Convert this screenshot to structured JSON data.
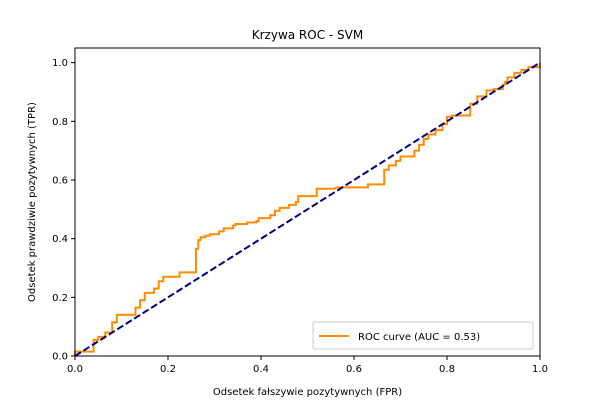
{
  "chart_data": {
    "type": "line",
    "title": "Krzywa ROC - SVM",
    "xlabel": "Odsetek fałszywie pozytywnych (FPR)",
    "ylabel": "Odsetek prawdziwie pozytywnych (TPR)",
    "xlim": [
      0.0,
      1.0
    ],
    "ylim": [
      0.0,
      1.05
    ],
    "xticks": [
      "0.0",
      "0.2",
      "0.4",
      "0.6",
      "0.8",
      "1.0"
    ],
    "yticks": [
      "0.0",
      "0.2",
      "0.4",
      "0.6",
      "0.8",
      "1.0"
    ],
    "grid": false,
    "legend_position": "lower right",
    "series": [
      {
        "name": "ROC curve (AUC = 0.53)",
        "color": "#ff8c00",
        "style": "solid",
        "points": [
          [
            0.0,
            0.0
          ],
          [
            0.0,
            0.015
          ],
          [
            0.04,
            0.015
          ],
          [
            0.04,
            0.055
          ],
          [
            0.05,
            0.055
          ],
          [
            0.05,
            0.065
          ],
          [
            0.065,
            0.065
          ],
          [
            0.065,
            0.08
          ],
          [
            0.08,
            0.08
          ],
          [
            0.08,
            0.115
          ],
          [
            0.09,
            0.115
          ],
          [
            0.09,
            0.14
          ],
          [
            0.13,
            0.14
          ],
          [
            0.13,
            0.165
          ],
          [
            0.14,
            0.165
          ],
          [
            0.14,
            0.19
          ],
          [
            0.15,
            0.19
          ],
          [
            0.15,
            0.215
          ],
          [
            0.17,
            0.215
          ],
          [
            0.17,
            0.23
          ],
          [
            0.18,
            0.23
          ],
          [
            0.18,
            0.255
          ],
          [
            0.19,
            0.255
          ],
          [
            0.19,
            0.27
          ],
          [
            0.225,
            0.27
          ],
          [
            0.225,
            0.285
          ],
          [
            0.26,
            0.285
          ],
          [
            0.26,
            0.365
          ],
          [
            0.265,
            0.365
          ],
          [
            0.265,
            0.395
          ],
          [
            0.27,
            0.395
          ],
          [
            0.27,
            0.405
          ],
          [
            0.28,
            0.405
          ],
          [
            0.28,
            0.41
          ],
          [
            0.29,
            0.41
          ],
          [
            0.29,
            0.415
          ],
          [
            0.31,
            0.415
          ],
          [
            0.31,
            0.425
          ],
          [
            0.32,
            0.425
          ],
          [
            0.32,
            0.435
          ],
          [
            0.34,
            0.435
          ],
          [
            0.34,
            0.445
          ],
          [
            0.345,
            0.445
          ],
          [
            0.345,
            0.45
          ],
          [
            0.37,
            0.45
          ],
          [
            0.37,
            0.455
          ],
          [
            0.39,
            0.455
          ],
          [
            0.39,
            0.46
          ],
          [
            0.395,
            0.46
          ],
          [
            0.395,
            0.47
          ],
          [
            0.42,
            0.47
          ],
          [
            0.42,
            0.48
          ],
          [
            0.43,
            0.48
          ],
          [
            0.43,
            0.495
          ],
          [
            0.44,
            0.495
          ],
          [
            0.44,
            0.505
          ],
          [
            0.46,
            0.505
          ],
          [
            0.46,
            0.515
          ],
          [
            0.475,
            0.515
          ],
          [
            0.475,
            0.525
          ],
          [
            0.48,
            0.525
          ],
          [
            0.48,
            0.545
          ],
          [
            0.52,
            0.545
          ],
          [
            0.52,
            0.57
          ],
          [
            0.555,
            0.57
          ],
          [
            0.565,
            0.575
          ],
          [
            0.63,
            0.575
          ],
          [
            0.63,
            0.585
          ],
          [
            0.665,
            0.585
          ],
          [
            0.665,
            0.635
          ],
          [
            0.675,
            0.635
          ],
          [
            0.675,
            0.65
          ],
          [
            0.69,
            0.65
          ],
          [
            0.69,
            0.665
          ],
          [
            0.7,
            0.665
          ],
          [
            0.7,
            0.68
          ],
          [
            0.73,
            0.68
          ],
          [
            0.73,
            0.7
          ],
          [
            0.74,
            0.7
          ],
          [
            0.74,
            0.72
          ],
          [
            0.75,
            0.72
          ],
          [
            0.75,
            0.74
          ],
          [
            0.76,
            0.74
          ],
          [
            0.76,
            0.755
          ],
          [
            0.775,
            0.755
          ],
          [
            0.775,
            0.77
          ],
          [
            0.79,
            0.77
          ],
          [
            0.79,
            0.79
          ],
          [
            0.8,
            0.79
          ],
          [
            0.8,
            0.815
          ],
          [
            0.81,
            0.815
          ],
          [
            0.81,
            0.82
          ],
          [
            0.85,
            0.82
          ],
          [
            0.85,
            0.86
          ],
          [
            0.865,
            0.86
          ],
          [
            0.865,
            0.885
          ],
          [
            0.885,
            0.885
          ],
          [
            0.885,
            0.905
          ],
          [
            0.9,
            0.905
          ],
          [
            0.9,
            0.91
          ],
          [
            0.92,
            0.91
          ],
          [
            0.92,
            0.925
          ],
          [
            0.925,
            0.925
          ],
          [
            0.925,
            0.935
          ],
          [
            0.93,
            0.935
          ],
          [
            0.93,
            0.95
          ],
          [
            0.945,
            0.95
          ],
          [
            0.945,
            0.965
          ],
          [
            0.96,
            0.965
          ],
          [
            0.96,
            0.975
          ],
          [
            0.975,
            0.975
          ],
          [
            0.975,
            0.985
          ],
          [
            1.0,
            0.985
          ],
          [
            1.0,
            1.0
          ]
        ]
      },
      {
        "name": "",
        "color": "#000080",
        "style": "dashed",
        "points": [
          [
            0.0,
            0.0
          ],
          [
            1.0,
            1.0
          ]
        ]
      }
    ]
  }
}
